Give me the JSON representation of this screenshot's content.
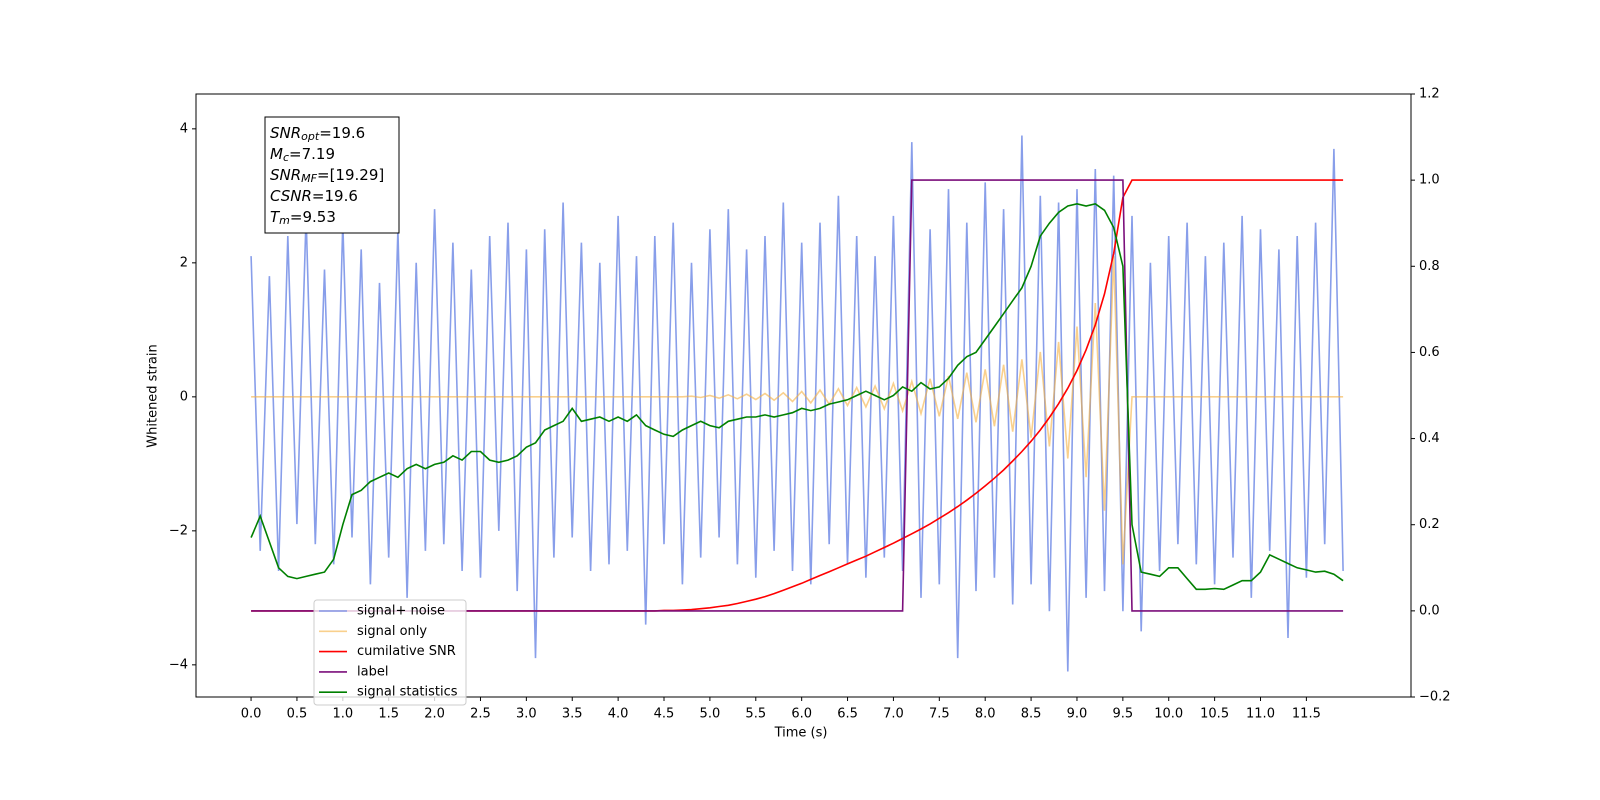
{
  "chart_data": {
    "type": "line",
    "xlabel": "Time (s)",
    "ylabel": "Whitened strain",
    "xlim": [
      -0.6,
      12.64
    ],
    "ylim": [
      -4.48,
      4.52
    ],
    "y2lim": [
      -0.2,
      1.2
    ],
    "xticks": [
      {
        "value": 0,
        "label": "0.0"
      },
      0.5,
      {
        "value": 1,
        "label": "1.0"
      },
      1.5,
      {
        "value": 2,
        "label": "2.0"
      },
      2.5,
      {
        "value": 3,
        "label": "3.0"
      },
      3.5,
      {
        "value": 4,
        "label": "4.0"
      },
      4.5,
      {
        "value": 5,
        "label": "5.0"
      },
      5.5,
      {
        "value": 6,
        "label": "6.0"
      },
      6.5,
      {
        "value": 7,
        "label": "7.0"
      },
      7.5,
      {
        "value": 8,
        "label": "8.0"
      },
      8.5,
      {
        "value": 9,
        "label": "9.0"
      },
      9.5,
      {
        "value": 10,
        "label": "10.0"
      },
      10.5,
      {
        "value": 11,
        "label": "11.0"
      },
      11.5
    ],
    "yticks": [
      {
        "value": -4,
        "label": "−4"
      },
      {
        "value": -2,
        "label": "−2"
      },
      0,
      2,
      4
    ],
    "y2ticks": [
      {
        "value": -0.2,
        "label": "−0.2"
      },
      {
        "value": 0,
        "label": "0.0"
      },
      0.2,
      0.4,
      0.6,
      0.8,
      {
        "value": 1,
        "label": "1.0"
      },
      1.2
    ],
    "legend_loc": "lower left",
    "annotation": [
      {
        "base": "SNR",
        "sub": "opt",
        "rest": "=19.6"
      },
      {
        "base": "M",
        "sub": "c",
        "rest": "=7.19"
      },
      {
        "base": "SNR",
        "sub": "MF",
        "rest": "=[19.29]"
      },
      {
        "base": "CSNR",
        "rest": "=19.6"
      },
      {
        "base": "T",
        "sub": "m",
        "rest": "=9.53"
      }
    ],
    "x": [
      0,
      0.1,
      0.2,
      0.3,
      0.4,
      0.5,
      0.6,
      0.7,
      0.8,
      0.9,
      1,
      1.1,
      1.2,
      1.3,
      1.4,
      1.5,
      1.6,
      1.7,
      1.8,
      1.9,
      2,
      2.1,
      2.2,
      2.3,
      2.4,
      2.5,
      2.6,
      2.7,
      2.8,
      2.9,
      3,
      3.1,
      3.2,
      3.3,
      3.4,
      3.5,
      3.6,
      3.7,
      3.8,
      3.9,
      4,
      4.1,
      4.2,
      4.3,
      4.4,
      4.5,
      4.6,
      4.7,
      4.8,
      4.9,
      5,
      5.1,
      5.2,
      5.3,
      5.4,
      5.5,
      5.6,
      5.7,
      5.8,
      5.9,
      6,
      6.1,
      6.2,
      6.3,
      6.4,
      6.5,
      6.6,
      6.7,
      6.8,
      6.9,
      7,
      7.1,
      7.2,
      7.3,
      7.4,
      7.5,
      7.6,
      7.7,
      7.8,
      7.9,
      8,
      8.1,
      8.2,
      8.3,
      8.4,
      8.5,
      8.6,
      8.7,
      8.8,
      8.9,
      9,
      9.1,
      9.2,
      9.3,
      9.4,
      9.5,
      9.6,
      9.7,
      9.8,
      9.9,
      10,
      10.1,
      10.2,
      10.3,
      10.4,
      10.5,
      10.6,
      10.7,
      10.8,
      10.9,
      11,
      11.1,
      11.2,
      11.3,
      11.4,
      11.5,
      11.6,
      11.7,
      11.8,
      11.9
    ],
    "series": [
      {
        "name": "signal+ noise",
        "color": "#7b93e8",
        "axis": "y",
        "values": [
          2.1,
          -2.3,
          1.8,
          -2.6,
          2.4,
          -1.9,
          2.7,
          -2.2,
          1.9,
          -2.5,
          2.6,
          -2.1,
          2.2,
          -2.8,
          1.7,
          -2.4,
          2.5,
          -3.0,
          2.0,
          -2.3,
          2.8,
          -2.2,
          2.3,
          -2.6,
          1.9,
          -2.7,
          2.4,
          -2.0,
          2.6,
          -2.9,
          2.2,
          -3.9,
          2.5,
          -2.4,
          2.9,
          -2.1,
          2.3,
          -2.6,
          2.0,
          -2.5,
          2.7,
          -2.3,
          2.1,
          -3.4,
          2.4,
          -2.2,
          2.6,
          -2.8,
          2.0,
          -2.4,
          2.5,
          -2.1,
          2.8,
          -2.5,
          2.2,
          -2.7,
          2.4,
          -2.3,
          2.9,
          -2.6,
          2.3,
          -2.8,
          2.6,
          -2.2,
          3.0,
          -2.5,
          2.4,
          -2.7,
          2.1,
          -2.4,
          2.7,
          -2.6,
          3.8,
          -3.0,
          2.5,
          -2.8,
          3.1,
          -3.9,
          2.6,
          -2.9,
          3.2,
          -2.7,
          2.8,
          -3.1,
          3.9,
          -2.8,
          3.0,
          -3.2,
          2.9,
          -4.1,
          3.1,
          -3.0,
          3.4,
          -2.9,
          3.3,
          -3.2,
          2.7,
          -3.5,
          2.0,
          -2.6,
          2.4,
          -2.2,
          2.6,
          -2.5,
          2.1,
          -2.8,
          2.3,
          -2.4,
          2.7,
          -3.0,
          2.5,
          -2.3,
          2.2,
          -3.6,
          2.4,
          -2.7,
          2.6,
          -2.2,
          3.7,
          -2.6
        ]
      },
      {
        "name": "signal only",
        "color": "#f5b041",
        "axis": "y",
        "values": [
          0,
          0,
          0,
          0,
          0,
          0,
          0,
          0,
          0,
          0,
          0,
          0,
          0,
          0,
          0,
          0,
          0,
          0,
          0,
          0,
          0,
          0,
          0,
          0,
          0,
          0,
          0,
          0,
          0,
          0,
          0,
          0,
          0,
          0,
          0,
          0,
          0,
          0,
          0,
          0,
          0,
          0,
          0,
          0,
          0,
          0,
          0,
          0,
          0.01,
          -0.01,
          0.02,
          -0.02,
          0.03,
          -0.03,
          0.04,
          -0.04,
          0.05,
          -0.05,
          0.06,
          -0.07,
          0.08,
          -0.09,
          0.1,
          -0.11,
          0.12,
          -0.13,
          0.14,
          -0.15,
          0.16,
          -0.18,
          0.2,
          -0.21,
          0.23,
          -0.25,
          0.27,
          -0.29,
          0.31,
          -0.33,
          0.36,
          -0.38,
          0.41,
          -0.44,
          0.48,
          -0.52,
          0.56,
          -0.61,
          0.67,
          -0.74,
          0.82,
          -0.92,
          1.05,
          -1.2,
          1.4,
          -1.7,
          2.1,
          -2.5,
          0,
          0,
          0,
          0,
          0,
          0,
          0,
          0,
          0,
          0,
          0,
          0,
          0,
          0,
          0,
          0,
          0,
          0,
          0,
          0,
          0,
          0,
          0,
          0
        ]
      },
      {
        "name": "cumilative SNR",
        "color": "#ff0000",
        "axis": "y2",
        "values": [
          0,
          0,
          0,
          0,
          0,
          0,
          0,
          0,
          0,
          0,
          0,
          0,
          0,
          0,
          0,
          0,
          0,
          0,
          0,
          0,
          0,
          0,
          0,
          0,
          0,
          0,
          0,
          0,
          0,
          0,
          0,
          0,
          0,
          0,
          0,
          0,
          0,
          0,
          0,
          0,
          0,
          0,
          0,
          0,
          0,
          0.001,
          0.001,
          0.002,
          0.003,
          0.005,
          0.007,
          0.01,
          0.013,
          0.017,
          0.022,
          0.027,
          0.033,
          0.04,
          0.048,
          0.056,
          0.064,
          0.073,
          0.082,
          0.091,
          0.1,
          0.109,
          0.118,
          0.127,
          0.137,
          0.147,
          0.157,
          0.168,
          0.179,
          0.19,
          0.202,
          0.215,
          0.228,
          0.242,
          0.257,
          0.273,
          0.29,
          0.308,
          0.327,
          0.348,
          0.37,
          0.394,
          0.42,
          0.449,
          0.481,
          0.517,
          0.558,
          0.606,
          0.664,
          0.736,
          0.83,
          0.96,
          1,
          1,
          1,
          1,
          1,
          1,
          1,
          1,
          1,
          1,
          1,
          1,
          1,
          1,
          1,
          1,
          1,
          1,
          1,
          1,
          1,
          1,
          1,
          1
        ]
      },
      {
        "name": "label",
        "color": "#7b0f7b",
        "axis": "y2",
        "values": [
          0,
          0,
          0,
          0,
          0,
          0,
          0,
          0,
          0,
          0,
          0,
          0,
          0,
          0,
          0,
          0,
          0,
          0,
          0,
          0,
          0,
          0,
          0,
          0,
          0,
          0,
          0,
          0,
          0,
          0,
          0,
          0,
          0,
          0,
          0,
          0,
          0,
          0,
          0,
          0,
          0,
          0,
          0,
          0,
          0,
          0,
          0,
          0,
          0,
          0,
          0,
          0,
          0,
          0,
          0,
          0,
          0,
          0,
          0,
          0,
          0,
          0,
          0,
          0,
          0,
          0,
          0,
          0,
          0,
          0,
          0,
          0,
          1,
          1,
          1,
          1,
          1,
          1,
          1,
          1,
          1,
          1,
          1,
          1,
          1,
          1,
          1,
          1,
          1,
          1,
          1,
          1,
          1,
          1,
          1,
          1,
          0,
          0,
          0,
          0,
          0,
          0,
          0,
          0,
          0,
          0,
          0,
          0,
          0,
          0,
          0,
          0,
          0,
          0,
          0,
          0,
          0,
          0,
          0,
          0
        ]
      },
      {
        "name": "signal statistics",
        "color": "#008000",
        "axis": "y2",
        "values": [
          0.17,
          0.22,
          0.16,
          0.1,
          0.08,
          0.075,
          0.08,
          0.085,
          0.09,
          0.12,
          0.2,
          0.27,
          0.28,
          0.3,
          0.31,
          0.32,
          0.31,
          0.33,
          0.34,
          0.33,
          0.34,
          0.345,
          0.36,
          0.35,
          0.37,
          0.37,
          0.35,
          0.345,
          0.35,
          0.36,
          0.38,
          0.39,
          0.42,
          0.43,
          0.44,
          0.47,
          0.44,
          0.445,
          0.45,
          0.44,
          0.45,
          0.44,
          0.455,
          0.43,
          0.42,
          0.41,
          0.405,
          0.42,
          0.43,
          0.44,
          0.43,
          0.425,
          0.44,
          0.445,
          0.45,
          0.45,
          0.455,
          0.45,
          0.455,
          0.46,
          0.47,
          0.465,
          0.47,
          0.48,
          0.485,
          0.49,
          0.5,
          0.51,
          0.5,
          0.49,
          0.5,
          0.52,
          0.51,
          0.53,
          0.515,
          0.52,
          0.54,
          0.57,
          0.59,
          0.6,
          0.63,
          0.66,
          0.69,
          0.72,
          0.75,
          0.8,
          0.87,
          0.9,
          0.925,
          0.94,
          0.945,
          0.94,
          0.945,
          0.93,
          0.89,
          0.8,
          0.2,
          0.09,
          0.085,
          0.08,
          0.1,
          0.1,
          0.075,
          0.05,
          0.05,
          0.052,
          0.05,
          0.06,
          0.07,
          0.07,
          0.09,
          0.13,
          0.12,
          0.11,
          0.1,
          0.095,
          0.09,
          0.092,
          0.085,
          0.07
        ]
      }
    ]
  }
}
